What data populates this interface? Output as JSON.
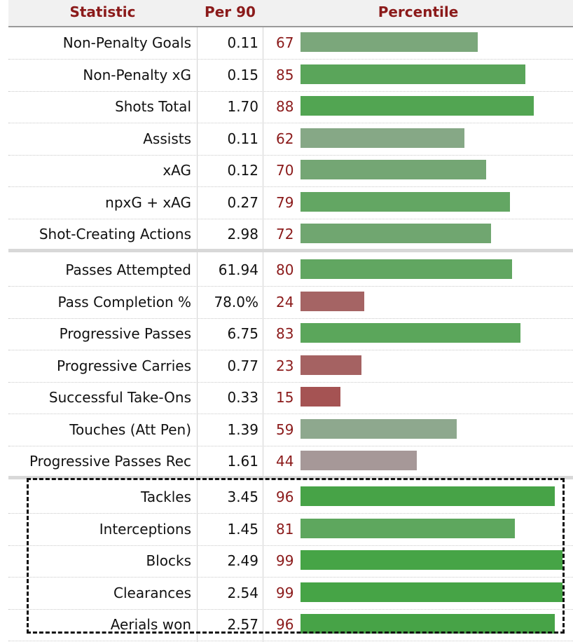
{
  "header": {
    "statistic": "Statistic",
    "per90": "Per 90",
    "percentile": "Percentile"
  },
  "chart_data": {
    "type": "bar",
    "orientation": "horizontal",
    "percentile_range": [
      0,
      100
    ],
    "groups": [
      {
        "rows": [
          {
            "label": "Non-Penalty Goals",
            "per90": "0.11",
            "percentile": 67,
            "color": "#7ba77b"
          },
          {
            "label": "Non-Penalty xG",
            "per90": "0.15",
            "percentile": 85,
            "color": "#5aa55a"
          },
          {
            "label": "Shots Total",
            "per90": "1.70",
            "percentile": 88,
            "color": "#52a552"
          },
          {
            "label": "Assists",
            "per90": "0.11",
            "percentile": 62,
            "color": "#86a886"
          },
          {
            "label": "xAG",
            "per90": "0.12",
            "percentile": 70,
            "color": "#74a674"
          },
          {
            "label": "npxG + xAG",
            "per90": "0.27",
            "percentile": 79,
            "color": "#63a663"
          },
          {
            "label": "Shot-Creating Actions",
            "per90": "2.98",
            "percentile": 72,
            "color": "#70a670"
          }
        ]
      },
      {
        "rows": [
          {
            "label": "Passes Attempted",
            "per90": "61.94",
            "percentile": 80,
            "color": "#61a661"
          },
          {
            "label": "Pass Completion %",
            "per90": "78.0%",
            "percentile": 24,
            "color": "#a56464"
          },
          {
            "label": "Progressive Passes",
            "per90": "6.75",
            "percentile": 83,
            "color": "#5ba65b"
          },
          {
            "label": "Progressive Carries",
            "per90": "0.77",
            "percentile": 23,
            "color": "#a56262"
          },
          {
            "label": "Successful Take-Ons",
            "per90": "0.33",
            "percentile": 15,
            "color": "#a55353"
          },
          {
            "label": "Touches (Att Pen)",
            "per90": "1.39",
            "percentile": 59,
            "color": "#8ea88e"
          },
          {
            "label": "Progressive Passes Rec",
            "per90": "1.61",
            "percentile": 44,
            "color": "#a69898"
          }
        ]
      },
      {
        "rows": [
          {
            "label": "Tackles",
            "per90": "3.45",
            "percentile": 96,
            "color": "#47a347"
          },
          {
            "label": "Interceptions",
            "per90": "1.45",
            "percentile": 81,
            "color": "#5ea75e"
          },
          {
            "label": "Blocks",
            "per90": "2.49",
            "percentile": 99,
            "color": "#46a446"
          },
          {
            "label": "Clearances",
            "per90": "2.54",
            "percentile": 99,
            "color": "#46a446"
          },
          {
            "label": "Aerials won",
            "per90": "2.57",
            "percentile": 96,
            "color": "#47a347"
          }
        ]
      }
    ]
  }
}
